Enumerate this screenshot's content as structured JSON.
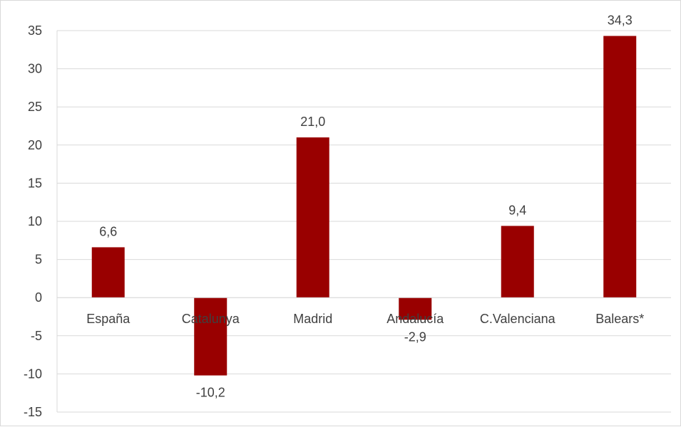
{
  "chart_data": {
    "type": "bar",
    "categories": [
      "España",
      "Catalunya",
      "Madrid",
      "Andalucía",
      "C.Valenciana",
      "Balears*"
    ],
    "values": [
      6.6,
      -10.2,
      21.0,
      -2.9,
      9.4,
      34.3
    ],
    "value_labels": [
      "6,6",
      "-10,2",
      "21,0",
      "-2,9",
      "9,4",
      "34,3"
    ],
    "title": "",
    "xlabel": "",
    "ylabel": "",
    "ylim": [
      -15,
      35
    ],
    "yticks": [
      35,
      30,
      25,
      20,
      15,
      10,
      5,
      0,
      -5,
      -10,
      -15
    ],
    "ytick_labels": [
      "35",
      "30",
      "25",
      "20",
      "15",
      "10",
      "5",
      "0",
      "-5",
      "-10",
      "-15"
    ],
    "grid": true,
    "legend": "none",
    "bar_color": "#990000",
    "grid_color": "#d9d9d9",
    "text_color": "#404040"
  }
}
